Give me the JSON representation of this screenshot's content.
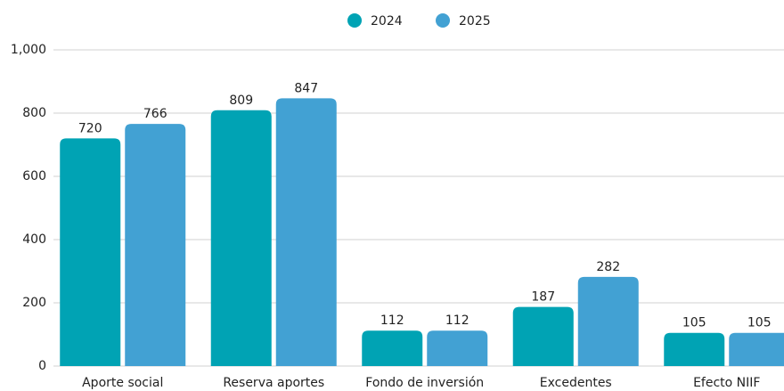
{
  "chart_data": {
    "type": "bar",
    "categories": [
      "Aporte social",
      "Reserva aportes",
      "Fondo de inversión",
      "Excedentes",
      "Efecto NIIF"
    ],
    "series": [
      {
        "name": "2024",
        "color": "#00a3b4",
        "values": [
          720,
          809,
          112,
          187,
          105
        ]
      },
      {
        "name": "2025",
        "color": "#42a1d3",
        "values": [
          766,
          847,
          112,
          282,
          105
        ]
      }
    ],
    "ylim": [
      0,
      1000
    ],
    "yticks": [
      0,
      200,
      400,
      600,
      800,
      {
        "value": 1000,
        "label": "1,000"
      }
    ],
    "grid": true,
    "legend": "top"
  }
}
